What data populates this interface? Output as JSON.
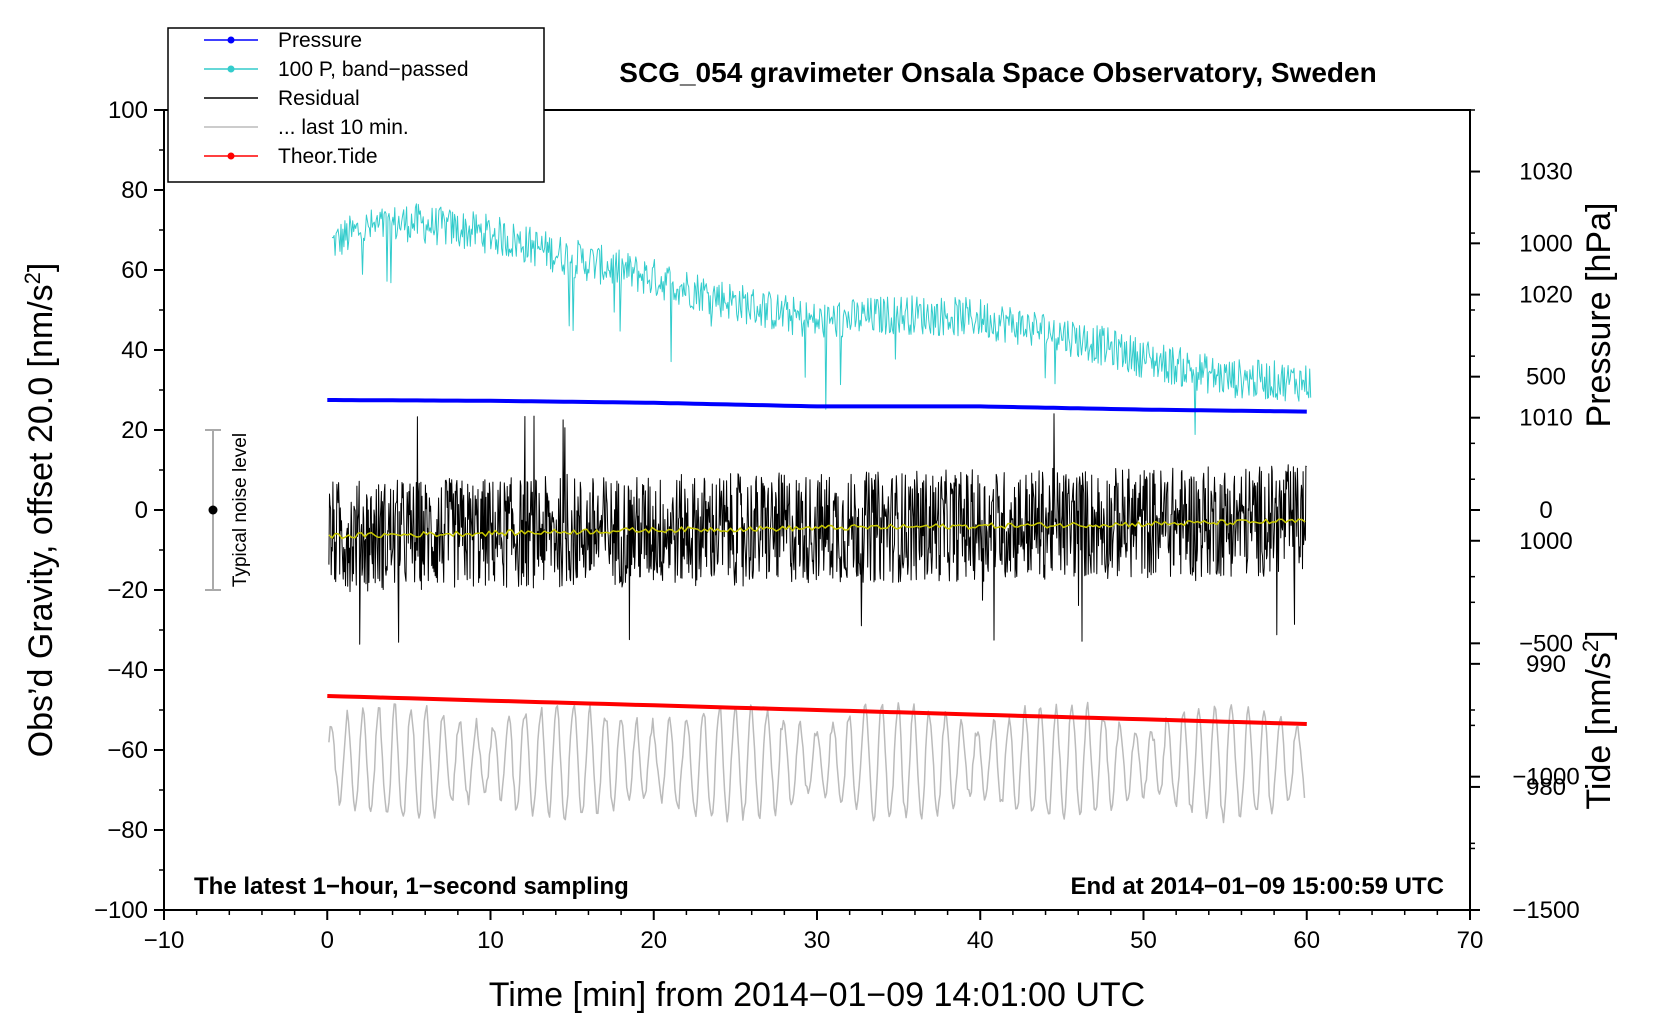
{
  "chart_data": {
    "type": "line",
    "title": "SCG_054 gravimeter Onsala Space Observatory, Sweden",
    "xlabel": "Time [min] from 2014−01−09 14:01:00 UTC",
    "ylabel_left_main": "Obs’d Gravity, offset 20.0 [nm/s",
    "ylabel_left_sup": "2",
    "ylabel_left_end": "]",
    "ylabel_right_top": "Pressure [hPa]",
    "ylabel_right_bottom_main": "Tide [nm/s",
    "ylabel_right_bottom_sup": "2",
    "ylabel_right_bottom_end": "]",
    "xlim": [
      -10,
      70
    ],
    "ylim": [
      -100,
      100
    ],
    "pressure_axis_range": [
      970,
      1035
    ],
    "tide_axis_range": [
      -1500,
      1500
    ],
    "x_ticks": [
      "−10",
      "0",
      "10",
      "20",
      "30",
      "40",
      "50",
      "60",
      "70"
    ],
    "y_ticks": [
      "−100",
      "−80",
      "−60",
      "−40",
      "−20",
      "0",
      "20",
      "40",
      "60",
      "80",
      "100"
    ],
    "pressure_ticks": [
      "980",
      "990",
      "1000",
      "1010",
      "1020",
      "1030"
    ],
    "tide_ticks": [
      "−1500",
      "−1000",
      "−500",
      "0",
      "500",
      "1000"
    ],
    "legend": [
      {
        "label": "Pressure",
        "color": "#0000ff",
        "marker": true
      },
      {
        "label": "100 P, band−passed",
        "color": "#33cccc",
        "marker": true
      },
      {
        "label": "Residual",
        "color": "#000000",
        "marker": false
      },
      {
        "label": "... last 10 min.",
        "color": "#bbbbbb",
        "marker": false
      },
      {
        "label": "Theor.Tide",
        "color": "#ff0000",
        "marker": true
      }
    ],
    "noise_bar": {
      "label": "Typical noise level",
      "x": -7,
      "center": 0,
      "low": -20,
      "high": 20
    },
    "note_left": "The latest 1−hour, 1−second sampling",
    "note_right": "End at 2014−01−09 15:00:59 UTC",
    "colors": {
      "pressure": "#0000ff",
      "bandpassed": "#33cccc",
      "residual": "#000000",
      "residual_smooth": "#c8c800",
      "last10": "#bbbbbb",
      "tide": "#ff0000"
    },
    "series": [
      {
        "name": "Pressure",
        "axis": "left",
        "x": [
          0,
          10,
          20,
          30,
          40,
          50,
          60
        ],
        "y": [
          27.5,
          27.3,
          26.8,
          25.9,
          25.9,
          25.1,
          24.6
        ]
      },
      {
        "name": "100 P, band−passed",
        "axis": "left",
        "x": [
          0,
          2,
          5,
          10,
          15,
          20,
          25,
          30,
          35,
          40,
          45,
          50,
          55,
          60
        ],
        "y": [
          66,
          70,
          72,
          69,
          63,
          58,
          52,
          47,
          49,
          48,
          44,
          38,
          33,
          32
        ],
        "noise_amplitude": 5
      },
      {
        "name": "Residual",
        "axis": "left",
        "x": [
          0,
          60
        ],
        "y": [
          -6.5,
          -2.5
        ],
        "noise_amplitude": 14
      },
      {
        "name": "Residual smoothed",
        "axis": "left",
        "x": [
          0,
          10,
          20,
          30,
          40,
          50,
          60
        ],
        "y": [
          -6.5,
          -5.8,
          -5.0,
          -4.5,
          -4.0,
          -3.5,
          -2.8
        ]
      },
      {
        "name": "... last 10 min.",
        "axis": "left",
        "x": [
          0,
          60
        ],
        "y": [
          -63,
          -63
        ],
        "noise_amplitude": 14
      },
      {
        "name": "Theor.Tide",
        "axis": "left",
        "x": [
          0,
          60
        ],
        "y": [
          -46.5,
          -53.5
        ]
      }
    ]
  }
}
